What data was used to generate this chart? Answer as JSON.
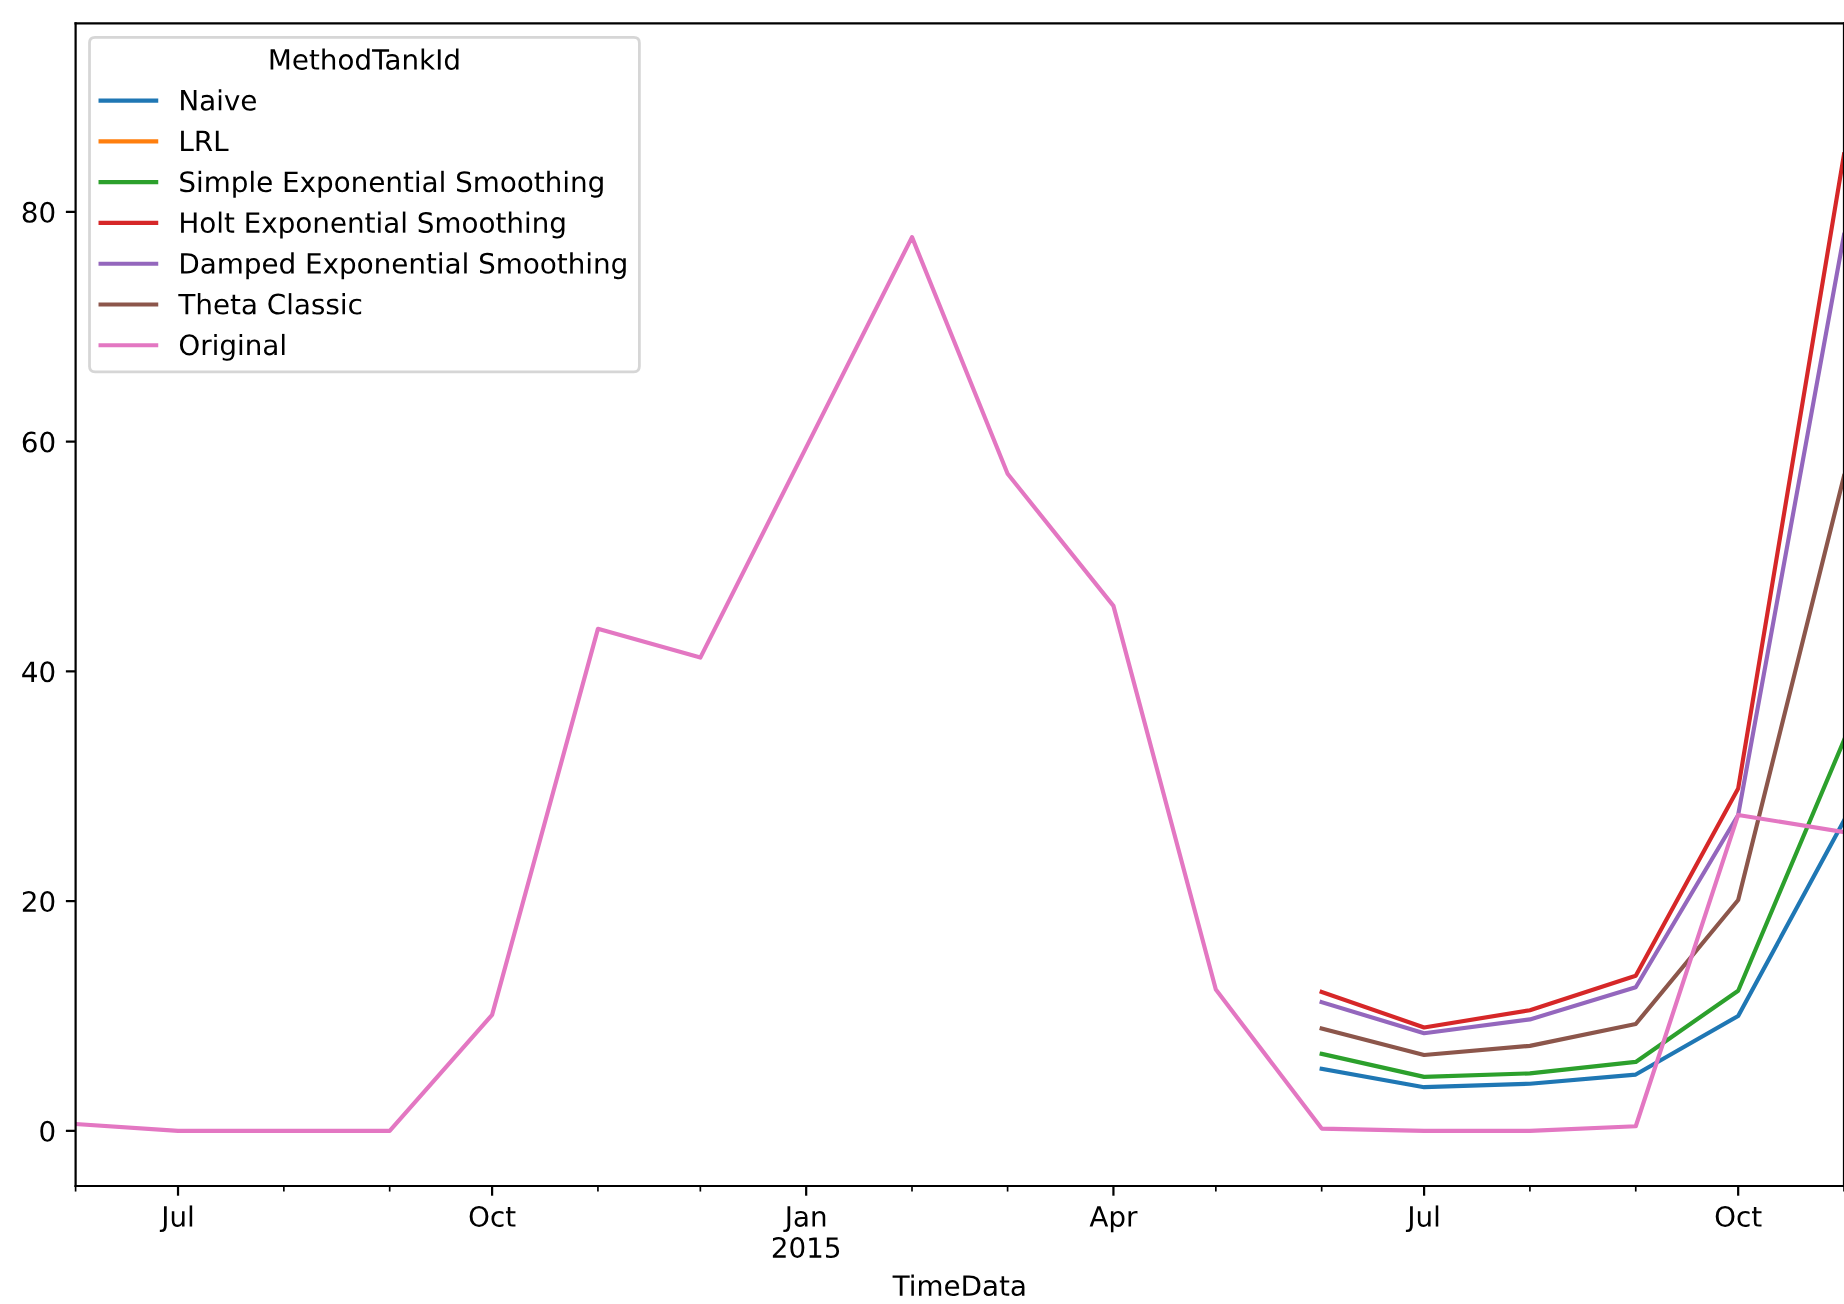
{
  "chart_data": {
    "type": "line",
    "xlabel": "TimeData",
    "legend_title": "MethodTankId",
    "legend": "top left",
    "x": [
      "2014-06",
      "2014-07",
      "2014-08",
      "2014-09",
      "2014-10",
      "2014-11",
      "2014-12",
      "2015-01",
      "2015-02",
      "2015-03",
      "2015-04",
      "2015-05",
      "2015-06",
      "2015-07",
      "2015-08",
      "2015-09",
      "2015-10",
      "2015-11"
    ],
    "series": [
      {
        "name": "Naive",
        "color": "#1f77b4",
        "x": [
          "2015-06",
          "2015-07",
          "2015-08",
          "2015-09",
          "2015-10",
          "2015-11"
        ],
        "values": [
          5.4,
          3.8,
          4.1,
          4.9,
          10.0,
          27
        ]
      },
      {
        "name": "LRL",
        "color": "#ff7f0e",
        "values": [
          null,
          null,
          null,
          null,
          null,
          null,
          null,
          null,
          null,
          null,
          null,
          null,
          null,
          null,
          null,
          null,
          null,
          null
        ]
      },
      {
        "name": "Simple Exponential Smoothing",
        "color": "#2ca02c",
        "x": [
          "2015-06",
          "2015-07",
          "2015-08",
          "2015-09",
          "2015-10",
          "2015-11"
        ],
        "values": [
          6.7,
          4.7,
          5.0,
          6.0,
          12.2,
          34
        ]
      },
      {
        "name": "Holt Exponential Smoothing",
        "color": "#d62728",
        "x": [
          "2015-06",
          "2015-07",
          "2015-08",
          "2015-09",
          "2015-10",
          "2015-11"
        ],
        "values": [
          12.1,
          9.0,
          10.5,
          13.5,
          29.8,
          85
        ]
      },
      {
        "name": "Damped Exponential Smoothing",
        "color": "#9467bd",
        "x": [
          "2015-06",
          "2015-07",
          "2015-08",
          "2015-09",
          "2015-10",
          "2015-11"
        ],
        "values": [
          11.2,
          8.5,
          9.7,
          12.5,
          27.5,
          78
        ]
      },
      {
        "name": "Theta Classic",
        "color": "#8c564b",
        "x": [
          "2015-06",
          "2015-07",
          "2015-08",
          "2015-09",
          "2015-10",
          "2015-11"
        ],
        "values": [
          8.9,
          6.6,
          7.4,
          9.3,
          20.1,
          57
        ]
      },
      {
        "name": "Original",
        "color": "#e377c2",
        "values": [
          0.6,
          0,
          0,
          0,
          10.1,
          43.7,
          41.2,
          59.5,
          77.8,
          57.2,
          45.7,
          12.3,
          0.2,
          0,
          0,
          0.4,
          27.5,
          26
        ]
      }
    ],
    "xlim": [
      "2014-06",
      "2015-11"
    ],
    "xticks": [
      {
        "value": "2014-07",
        "label": "Jul"
      },
      {
        "value": "2014-10",
        "label": "Oct"
      },
      {
        "value": "2015-01",
        "label": "Jan\n2015"
      },
      {
        "value": "2015-04",
        "label": "Apr"
      },
      {
        "value": "2015-07",
        "label": "Jul"
      },
      {
        "value": "2015-10",
        "label": "Oct"
      }
    ],
    "ylim": [
      -4.8,
      96.4
    ],
    "yticks": [
      0,
      20,
      40,
      60,
      80
    ],
    "grid": false
  }
}
